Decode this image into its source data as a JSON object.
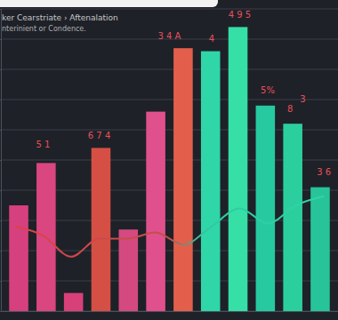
{
  "chart_data": {
    "type": "bar",
    "title": "ker Cearstriate › Aftenalation",
    "subtitle": "nterinient or Condence.",
    "categories": [
      null,
      null,
      null,
      null,
      null,
      null,
      null,
      null,
      null,
      null,
      null,
      null
    ],
    "series": [
      {
        "type": "bar",
        "values": [
          35,
          49,
          6,
          54,
          27,
          66,
          87,
          86,
          94,
          68,
          62,
          41
        ],
        "colors": [
          "#d6407e",
          "#d94680",
          "#d8407a",
          "#d64f45",
          "#d44a80",
          "#e0508c",
          "#e35f4c",
          "#2fd6a8",
          "#35dfa6",
          "#27c9a0",
          "#2bcf9e",
          "#27c49a"
        ]
      },
      {
        "type": "line",
        "values": [
          28,
          25,
          18,
          24,
          24,
          26,
          22,
          28,
          34,
          29,
          35,
          38
        ]
      }
    ],
    "ylim": [
      0,
      100
    ],
    "yticks": [
      0,
      10,
      20,
      30,
      40,
      50,
      60,
      70,
      80,
      90,
      100
    ],
    "grid": true,
    "tick_labels": false,
    "annotations": [
      {
        "text": "5 1",
        "x": 1,
        "y": 54
      },
      {
        "text": "6 7 4",
        "x": 3,
        "y": 57
      },
      {
        "text": "3 4 A",
        "x": 5.5,
        "y": 90
      },
      {
        "text": "4",
        "x": 7,
        "y": 89
      },
      {
        "text": "4 9 5",
        "x": 8,
        "y": 97
      },
      {
        "text": "5%",
        "x": 9,
        "y": 72
      },
      {
        "text": "8",
        "x": 9.8,
        "y": 66
      },
      {
        "text": "3",
        "x": 10.25,
        "y": 69
      },
      {
        "text": "3 6",
        "x": 11,
        "y": 45
      }
    ]
  }
}
